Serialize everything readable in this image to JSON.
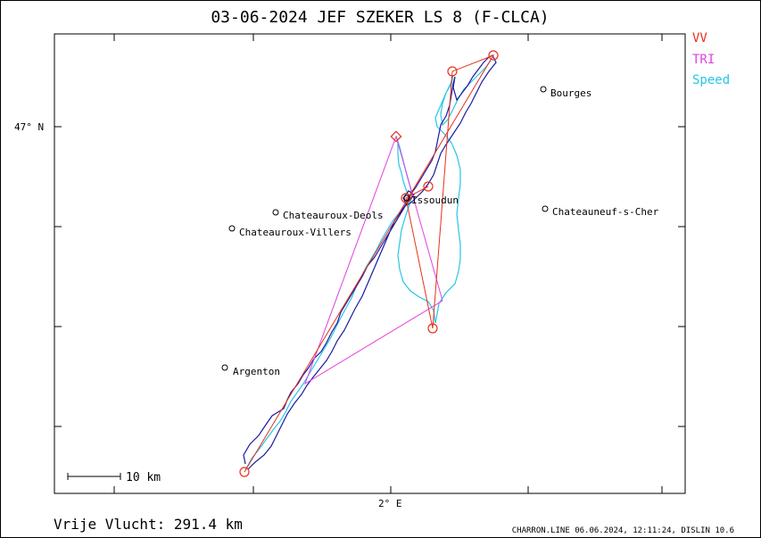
{
  "title": "03-06-2024    JEF SZEKER    LS 8 (F-CLCA)",
  "legend": [
    {
      "label": "VV",
      "color": "#e8311a"
    },
    {
      "label": "TRI",
      "color": "#e040e0"
    },
    {
      "label": "Speed",
      "color": "#27c6e6"
    }
  ],
  "axes": {
    "lat_label": "47° N",
    "lon_label": "2° E"
  },
  "towns": [
    {
      "name": "Bourges"
    },
    {
      "name": "Chateauroux-Deols"
    },
    {
      "name": "Chateauroux-Villers"
    },
    {
      "name": "Issoudun"
    },
    {
      "name": "Chateauneuf-s-Cher"
    },
    {
      "name": "Argenton"
    }
  ],
  "scale_label": "10 km",
  "distance_label": "Vrije Vlucht:  291.4 km",
  "footer": "CHARRON.LINE 06.06.2024, 12:11:24, DISLIN 10.6",
  "colors": {
    "track": "#1a1aa0",
    "vv": "#e8311a",
    "tri": "#e040e0",
    "speed": "#27c6e6",
    "frame": "#000000"
  }
}
